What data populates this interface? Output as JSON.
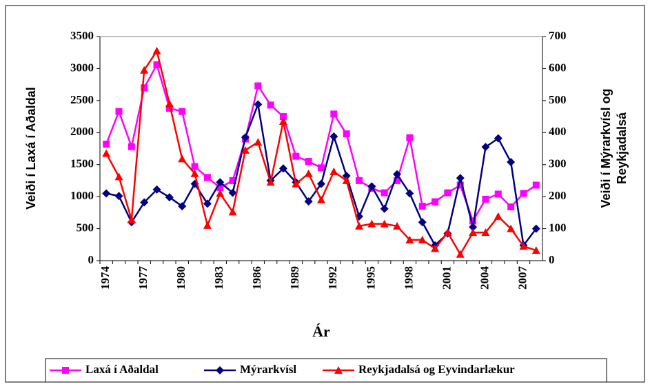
{
  "chart_data": {
    "type": "line",
    "x_label": "Ár",
    "y_label": "Veiði í Laxá í Aðaldal",
    "y2_label": [
      "Veiði í Mýrarkvísl og",
      "Reykjadalsá"
    ],
    "categories": [
      "1974",
      null,
      null,
      "1977",
      null,
      null,
      "1980",
      null,
      null,
      "1983",
      null,
      null,
      "1986",
      null,
      null,
      "1989",
      null,
      null,
      "1992",
      null,
      null,
      "1995",
      null,
      null,
      "1998",
      null,
      null,
      "2001",
      null,
      null,
      "2004",
      null,
      null,
      "2007",
      null
    ],
    "ylim": [
      0,
      3500
    ],
    "yticks": [
      0,
      500,
      1000,
      1500,
      2000,
      2500,
      3000,
      3500
    ],
    "y2lim": [
      0,
      700
    ],
    "y2ticks": [
      0,
      100,
      200,
      300,
      400,
      500,
      600,
      700
    ],
    "legend": "bottom",
    "series": [
      {
        "name": "Laxá í Aðaldal",
        "color": "#ff00ff",
        "marker": "square",
        "values": [
          1820,
          2330,
          1780,
          2700,
          3060,
          2380,
          2330,
          1470,
          1300,
          1140,
          1250,
          1900,
          2730,
          2430,
          2250,
          1630,
          1550,
          1450,
          2290,
          1980,
          1250,
          1130,
          1060,
          1250,
          1920,
          850,
          920,
          1060,
          1180,
          620,
          960,
          1040,
          840,
          1050,
          1180
        ]
      },
      {
        "name": "Mýrarkvísl",
        "color": "#000080",
        "marker": "diamond",
        "axis": "y2",
        "values": [
          210,
          202,
          120,
          182,
          222,
          198,
          170,
          240,
          178,
          245,
          212,
          385,
          488,
          250,
          288,
          245,
          185,
          240,
          388,
          265,
          138,
          232,
          162,
          270,
          210,
          120,
          48,
          85,
          258,
          105,
          355,
          382,
          308,
          48,
          100
        ]
      },
      {
        "name": "Reykjadalsá og Eyvindarlækur",
        "color": "#ff0000",
        "marker": "triangle",
        "axis": "y2",
        "values": [
          335,
          262,
          128,
          595,
          655,
          490,
          318,
          272,
          110,
          210,
          152,
          345,
          370,
          245,
          435,
          240,
          272,
          190,
          278,
          250,
          108,
          115,
          115,
          108,
          65,
          65,
          38,
          88,
          20,
          88,
          88,
          138,
          100,
          45,
          32
        ]
      }
    ]
  }
}
